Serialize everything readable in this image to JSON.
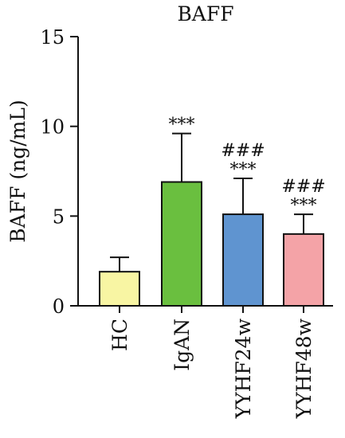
{
  "chart_data": {
    "type": "bar",
    "title": "BAFF",
    "xlabel": "",
    "ylabel": "BAFF (ng/mL)",
    "ylim": [
      0,
      15
    ],
    "yticks": [
      0,
      5,
      10,
      15
    ],
    "grid": false,
    "categories": [
      "HC",
      "IgAN",
      "YYHF24w",
      "YYHF48w"
    ],
    "values": [
      1.9,
      6.9,
      5.1,
      4.0
    ],
    "error_upper": [
      2.7,
      9.6,
      7.1,
      5.1
    ],
    "colors": [
      "#f8f5a3",
      "#6abf3f",
      "#5f94d0",
      "#f4a3a7"
    ],
    "annotations": [
      [],
      [
        "***"
      ],
      [
        "###",
        "***"
      ],
      [
        "###",
        "***"
      ]
    ]
  }
}
